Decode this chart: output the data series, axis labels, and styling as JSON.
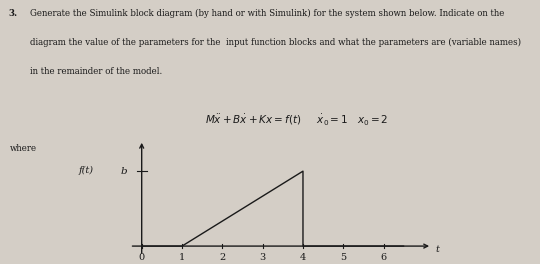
{
  "title_number": "3.",
  "line1": "Generate the Simulink block diagram (by hand or with Simulink) for the system shown below. Indicate on the",
  "line2": "diagram the value of the parameters for the  input function blocks and what the parameters are (variable names)",
  "line3": "in the remainder of the model.",
  "equation_str": "$M\\ddot{x} + B\\dot{x} + Kx = f(t)$",
  "ic_str": "$\\dot{x}_0 = 1$   $x_0 = 2$",
  "where_label": "where",
  "ylabel": "f(t)",
  "xlabel": "t",
  "x_ticks": [
    0,
    1,
    2,
    3,
    4,
    5,
    6
  ],
  "y_tick_val": 6,
  "y_tick_label": "b",
  "graph_x": [
    0,
    1,
    4,
    4,
    6.5
  ],
  "graph_y": [
    0,
    0,
    6,
    0,
    0
  ],
  "xlim": [
    -0.3,
    7.2
  ],
  "ylim": [
    -0.8,
    8.5
  ],
  "bg_color": "#d4cec6",
  "line_color": "#1a1a1a",
  "text_color": "#1a1a1a",
  "font_size_body": 6.2,
  "font_size_label": 7.0,
  "font_size_tick": 7.0,
  "font_size_eq": 7.5
}
